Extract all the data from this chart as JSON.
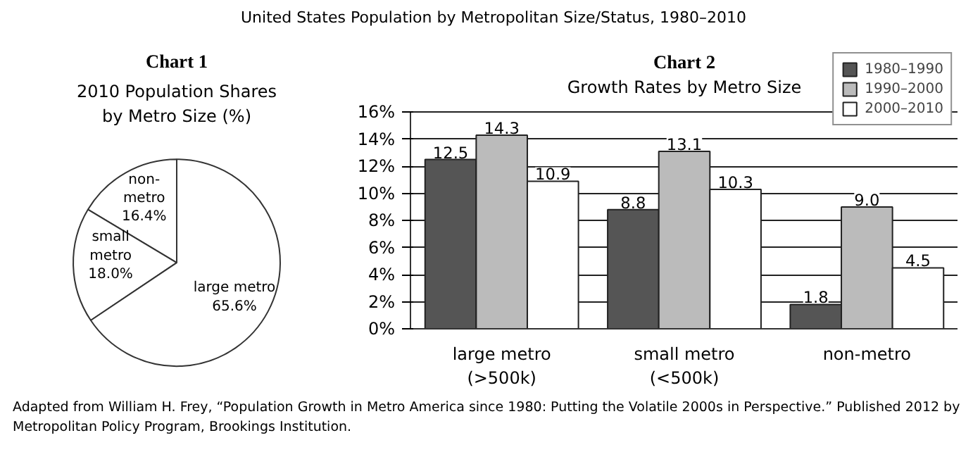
{
  "chart_data": [
    {
      "type": "pie",
      "title": "Chart 1",
      "subtitle": "2010 Population Shares\nby Metro Size (%)",
      "annotations": [
        "United States Population by Metropolitan Size/Status, 1980–2010"
      ],
      "categories": [
        "non-\nmetro",
        "small\nmetro",
        "large metro"
      ],
      "values": [
        16.4,
        18.0,
        65.6
      ],
      "colors": [
        "#ffffff",
        "#ffffff",
        "#ffffff"
      ],
      "value_labels": [
        "16.4%",
        "18.0%",
        "65.6%"
      ]
    },
    {
      "type": "bar",
      "title": "Chart 2",
      "subtitle": "Growth Rates by Metro Size",
      "annotations": [
        "Adapted from William H. Frey, “Population Growth in Metro America since 1980: Putting the Volatile 2000s in Perspective.” Published 2012 by Metropolitan Policy Program, Brookings Institution."
      ],
      "categories": [
        "large metro\n(>500k)",
        "small metro\n(<500k)",
        "non-metro"
      ],
      "series": [
        {
          "name": "1980–1990",
          "color": "#555555",
          "values": [
            12.5,
            8.8,
            1.8
          ],
          "value_labels": [
            "12.5",
            "8.8",
            "1.8"
          ]
        },
        {
          "name": "1990–2000",
          "color": "#bbbbbb",
          "values": [
            14.3,
            13.1,
            9.0
          ],
          "value_labels": [
            "14.3",
            "13.1",
            "9.0"
          ]
        },
        {
          "name": "2000–2010",
          "color": "#ffffff",
          "values": [
            10.9,
            10.3,
            4.5
          ],
          "value_labels": [
            "10.9",
            "10.3",
            "4.5"
          ]
        }
      ],
      "ylim": [
        0,
        16
      ],
      "yticks": [
        {
          "value": 0,
          "label": "0%"
        },
        {
          "value": 2,
          "label": "2%"
        },
        {
          "value": 4,
          "label": "4%"
        },
        {
          "value": 6,
          "label": "6%"
        },
        {
          "value": 8,
          "label": "8%"
        },
        {
          "value": 10,
          "label": "10%"
        },
        {
          "value": 12,
          "label": "12%"
        },
        {
          "value": 14,
          "label": "14%"
        },
        {
          "value": 16,
          "label": "16%"
        }
      ],
      "grid": "y",
      "legend": "top right"
    }
  ]
}
